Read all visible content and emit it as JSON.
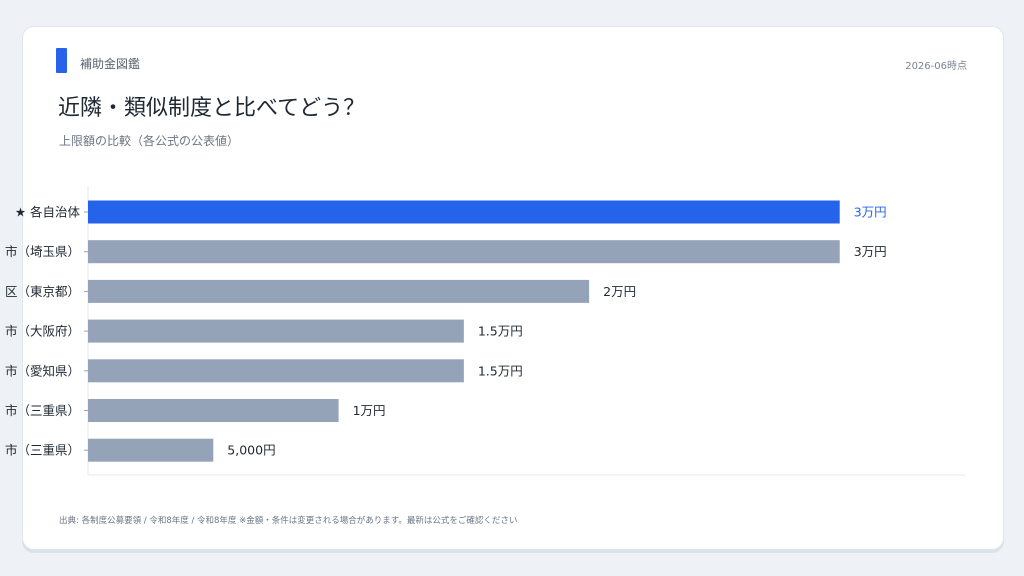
{
  "header": {
    "brand": "補助金図鑑",
    "date": "2026-06時点",
    "title": "近隣・類似制度と比べてどう？",
    "subtitle": "上限額の比較（各公式の公表値）"
  },
  "footer": {
    "source": "出典: 各制度公募要領 / 令和8年度 / 令和8年度 ※金額・条件は変更される場合があります。最新は公式をご確認ください"
  },
  "colors": {
    "highlight": "#2563eb",
    "bar": "#94a3b8",
    "label": "#1f2933",
    "axis": "#e3e7ed"
  },
  "chart_data": {
    "type": "bar",
    "orientation": "horizontal",
    "categories": [
      "★ 各自治体",
      "市（埼玉県）",
      "区（東京都）",
      "市（大阪府）",
      "市（愛知県）",
      "市（三重県）",
      "市（三重県）"
    ],
    "values": [
      30000,
      30000,
      20000,
      15000,
      15000,
      10000,
      5000
    ],
    "value_labels": [
      "3万円",
      "3万円",
      "2万円",
      "1.5万円",
      "1.5万円",
      "1万円",
      "5,000円"
    ],
    "highlight_index": 0,
    "xlim": [
      0,
      35000
    ],
    "unit": "円",
    "grid": false,
    "legend": "none"
  }
}
